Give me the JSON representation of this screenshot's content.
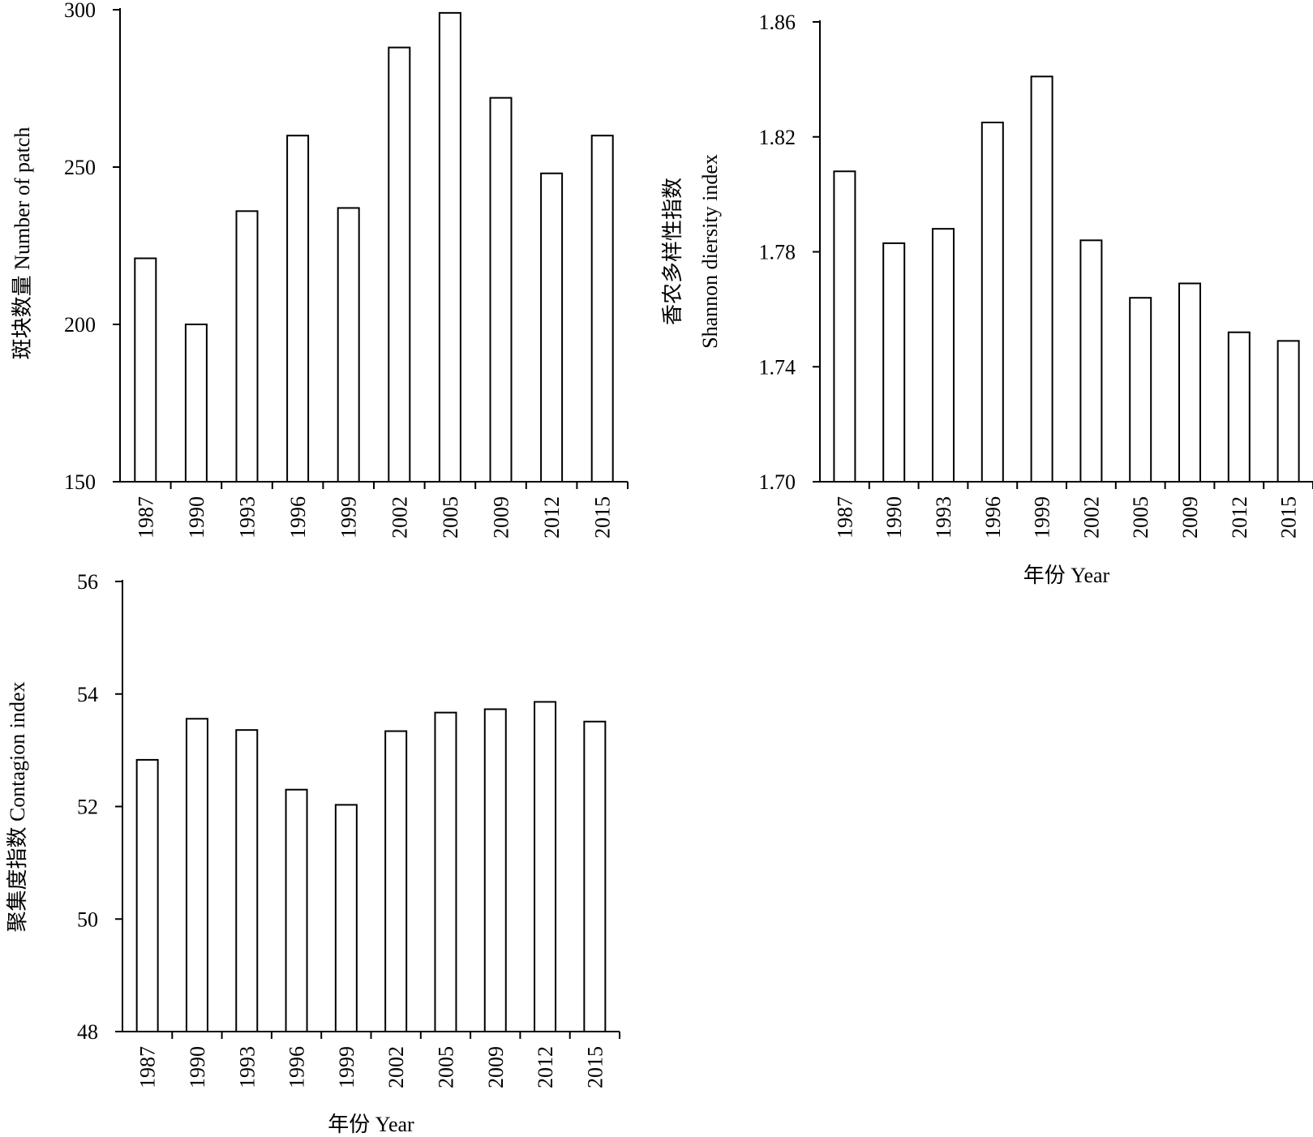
{
  "chart_data": [
    {
      "type": "bar",
      "categories": [
        "1987",
        "1990",
        "1993",
        "1996",
        "1999",
        "2002",
        "2005",
        "2009",
        "2012",
        "2015"
      ],
      "values": [
        221,
        200,
        236,
        260,
        237,
        288,
        299,
        272,
        248,
        260
      ],
      "ylabel_lines": [
        "斑块数量 Number of patch"
      ],
      "xlabel": "",
      "ylim": [
        150,
        300
      ],
      "yticks": [
        "150",
        "200",
        "250",
        "300"
      ],
      "grid": false,
      "bar_fill": "#ffffff",
      "bar_stroke": "#000000"
    },
    {
      "type": "bar",
      "categories": [
        "1987",
        "1990",
        "1993",
        "1996",
        "1999",
        "2002",
        "2005",
        "2009",
        "2012",
        "2015"
      ],
      "values": [
        1.808,
        1.783,
        1.788,
        1.825,
        1.841,
        1.784,
        1.764,
        1.769,
        1.752,
        1.749
      ],
      "ylabel_lines": [
        "香农多样性指数",
        "Shannon diersity index"
      ],
      "xlabel": "年份 Year",
      "ylim": [
        1.7,
        1.86
      ],
      "yticks": [
        "1.70",
        "1.74",
        "1.78",
        "1.82",
        "1.86"
      ],
      "grid": false,
      "bar_fill": "#ffffff",
      "bar_stroke": "#000000"
    },
    {
      "type": "bar",
      "categories": [
        "1987",
        "1990",
        "1993",
        "1996",
        "1999",
        "2002",
        "2005",
        "2009",
        "2012",
        "2015"
      ],
      "values": [
        52.83,
        53.56,
        53.36,
        52.3,
        52.03,
        53.34,
        53.67,
        53.73,
        53.86,
        53.51
      ],
      "ylabel_lines": [
        "聚集度指数 Contagion index"
      ],
      "xlabel": "年份 Year",
      "ylim": [
        48,
        56
      ],
      "yticks": [
        "48",
        "50",
        "52",
        "54",
        "56"
      ],
      "grid": false,
      "bar_fill": "#ffffff",
      "bar_stroke": "#000000"
    }
  ]
}
